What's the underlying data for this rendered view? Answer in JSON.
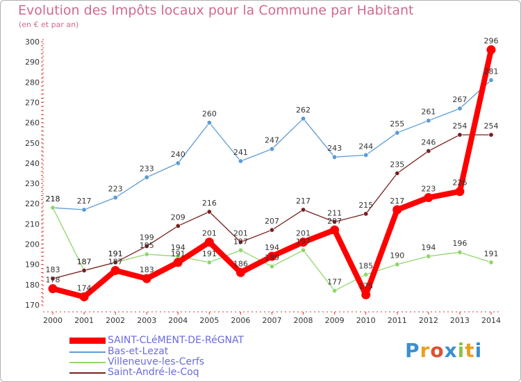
{
  "header": {
    "title": "Evolution des Impôts locaux pour la Commune par Habitant",
    "subtitle": "(en € et par an)"
  },
  "brand": {
    "text": "Proxiti",
    "letter_colors": [
      "#3a8fd0",
      "#e8a020",
      "#e05030",
      "#3a8fd0",
      "#8bc34a",
      "#e8a020",
      "#3a8fd0"
    ]
  },
  "chart_data": {
    "type": "line",
    "x": [
      "2000",
      "2001",
      "2002",
      "2003",
      "2004",
      "2005",
      "2006",
      "2007",
      "2008",
      "2009",
      "2010",
      "2011",
      "2012",
      "2013",
      "2014"
    ],
    "ylim": [
      170,
      300
    ],
    "yticks": [
      170,
      180,
      190,
      200,
      210,
      220,
      230,
      240,
      250,
      260,
      270,
      280,
      290,
      300
    ],
    "grid": false,
    "legend_position": "bottom-left",
    "series": [
      {
        "name": "SAINT-CLéMENT-DE-RéGNAT",
        "color": "#ff0000",
        "values": [
          178,
          174,
          187,
          183,
          191,
          201,
          186,
          194,
          201,
          207,
          175,
          217,
          223,
          226,
          296
        ],
        "labels": [
          "178",
          "174",
          "187",
          "183",
          "191",
          "201",
          "186",
          "194",
          "201",
          "207",
          "175",
          "217",
          "223",
          "226",
          "296"
        ]
      },
      {
        "name": "Bas-et-Lezat",
        "color": "#5b9bd5",
        "values": [
          218,
          217,
          223,
          233,
          240,
          260,
          241,
          247,
          262,
          243,
          244,
          255,
          261,
          267,
          281
        ],
        "labels": [
          "218",
          "217",
          "223",
          "233",
          "240",
          "260",
          "241",
          "247",
          "262",
          "243",
          "244",
          "255",
          "261",
          "267",
          "281"
        ]
      },
      {
        "name": "Villeneuve-les-Cerfs",
        "color": "#8fd66a",
        "values": [
          218,
          187,
          191,
          195,
          194,
          191,
          197,
          189,
          197,
          177,
          185,
          190,
          194,
          196,
          191
        ],
        "labels": [
          "218",
          "187",
          "191",
          "195",
          "194",
          "191",
          "197",
          "189",
          "197",
          "177",
          "185",
          "190",
          "194",
          "196",
          "191"
        ]
      },
      {
        "name": "Saint-André-le-Coq",
        "color": "#7a1f1f",
        "values": [
          183,
          187,
          191,
          199,
          209,
          216,
          201,
          207,
          217,
          211,
          215,
          235,
          246,
          254,
          254
        ],
        "labels": [
          "183",
          "187",
          "191",
          "199",
          "209",
          "216",
          "201",
          "207",
          "217",
          "211",
          "215",
          "235",
          "246",
          "254",
          "254"
        ]
      }
    ]
  }
}
